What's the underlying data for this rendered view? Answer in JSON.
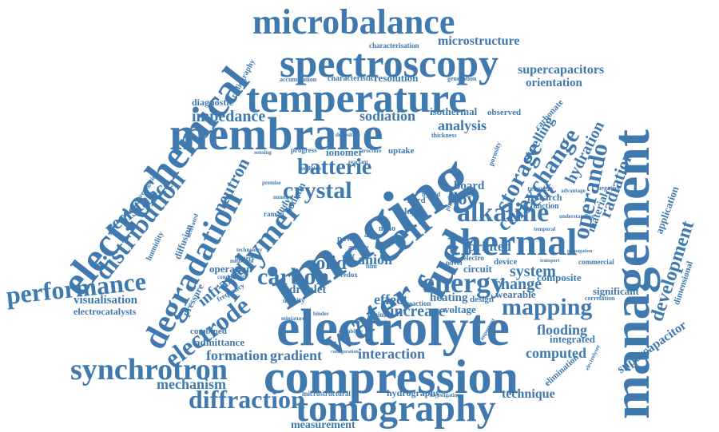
{
  "word_color": "#3f79ad",
  "background": "#ffffff",
  "words": {
    "management": "management",
    "electrochemical": "electrochemical",
    "microbalance": "microbalance",
    "spectroscopy": "spectroscopy",
    "temperature": "temperature",
    "membrane": "membrane",
    "imaging": "imaging",
    "electrolyte": "electrolyte",
    "compression": "compression",
    "tomography": "tomography",
    "synchrotron": "synchrotron",
    "performance": "performance",
    "degradation": "degradation",
    "distribution": "distribution",
    "resistance": "resistance",
    "polymer": "polymer",
    "electrode": "electrode",
    "water": "water",
    "fuel": "fuel",
    "cell": "cell",
    "thermal": "thermal",
    "alkaline": "alkaline",
    "energy": "energy",
    "mapping": "mapping",
    "diffraction": "diffraction",
    "crystal": "crystal",
    "carbon": "carbon",
    "batterie": "batterie",
    "storage": "storage",
    "exchange": "exchange",
    "operando": "operando",
    "current": "current",
    "radiation": "radiation",
    "hydration": "hydration",
    "swelling": "swelling",
    "flow": "flow",
    "board": "board",
    "solid": "solid",
    "anion": "anion",
    "printed": "printed",
    "system": "system",
    "change": "change",
    "flooding": "flooding",
    "computed": "computed",
    "mechanism": "mechanism",
    "formation": "formation",
    "gradient": "gradient",
    "interaction": "interaction",
    "measurement": "measurement",
    "technique": "technique",
    "development": "development",
    "supercapacitor": "supercapacitor",
    "supercapacitors": "supercapacitors",
    "orientation": "orientation",
    "visualisation": "visualisation",
    "electrocatalysts": "electrocatalysts",
    "infrared": "infrared",
    "neutron": "neutron",
    "impedance": "impedance",
    "sodiation": "sodiation",
    "analysis": "analysis",
    "isothermal": "isothermal",
    "diagnostic": "diagnostic",
    "microstructure": "microstructure",
    "resolution": "resolution",
    "characteristic": "characteristic",
    "characterisation": "characterisation",
    "radiography": "radiography",
    "accumulation": "accumulation",
    "generation": "generation",
    "carbonate": "carbonate",
    "observed": "observed",
    "effect": "effect",
    "increase": "increase",
    "heating": "heating",
    "voltage": "voltage",
    "design": "design",
    "wearable": "wearable",
    "composite": "composite",
    "significant": "significant",
    "integrated": "integrated",
    "elimination": "elimination",
    "dimensional": "dimensional",
    "application": "application",
    "material": "material",
    "research": "research",
    "function": "function",
    "recovery": "recovery",
    "hydrography": "hydrography",
    "microstructural": "microstructural",
    "combined": "combined",
    "admittance": "admittance",
    "pressure": "pressure",
    "frequency": "frequency",
    "operation": "operation",
    "diffusion": "diffusion",
    "humidity": "humidity",
    "droplet": "droplet",
    "ionomer": "ionomer",
    "uptake": "uptake",
    "progress": "progress",
    "sodium": "sodium",
    "study": "study",
    "raman": "raman",
    "power": "power",
    "anode": "anode",
    "circuit": "circuit",
    "device": "device",
    "electro": "electro",
    "novel": "novel",
    "reaction": "reaction",
    "lithium": "lithium",
    "commercial": "commercial",
    "correlation": "correlation",
    "negative": "negative",
    "layer": "layer",
    "hard": "hard",
    "nano": "nano",
    "hybrid": "hybrid",
    "phase": "phase",
    "thickness": "thickness",
    "porosity": "porosity",
    "investigation": "investigation",
    "activated": "activated",
    "battery": "battery",
    "technology": "technology",
    "self": "self",
    "film": "film",
    "redox": "redox",
    "density": "density",
    "miniature": "miniature",
    "binder": "binder",
    "investigating": "investigating",
    "electrolyser": "electrolyser",
    "understanding": "understanding",
    "advantage": "advantage",
    "condition": "condition",
    "reactant": "reactant",
    "structure": "structure",
    "deposition": "deposition",
    "number": "number",
    "sensing": "sensing",
    "conductivity": "conductivity",
    "measured": "measured",
    "propagation": "propagation",
    "transport": "transport",
    "premise": "premise",
    "air": "air",
    "durability": "durability",
    "configuration": "configuration",
    "important": "important",
    "temporal": "temporal"
  }
}
